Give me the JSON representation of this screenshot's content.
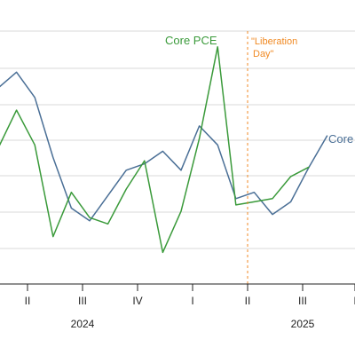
{
  "chart_data": {
    "type": "line",
    "x": [
      "2024-01",
      "2024-02",
      "2024-03",
      "2024-04",
      "2024-05",
      "2024-06",
      "2024-07",
      "2024-08",
      "2024-09",
      "2024-10",
      "2024-11",
      "2024-12",
      "2025-01",
      "2025-02",
      "2025-03",
      "2025-04",
      "2025-05",
      "2025-06",
      "2025-07",
      "2025-08"
    ],
    "series": [
      {
        "name": "Core",
        "color": "#4a6f96",
        "values": [
          0.5,
          0.55,
          0.47,
          0.28,
          0.12,
          0.08,
          0.16,
          0.24,
          0.26,
          0.3,
          0.24,
          0.38,
          0.32,
          0.15,
          0.17,
          0.1,
          0.14,
          0.25,
          0.35,
          null
        ]
      },
      {
        "name": "Core PCE",
        "color": "#3a9a3a",
        "values": [
          0.31,
          0.43,
          0.32,
          0.03,
          0.17,
          0.09,
          0.07,
          0.18,
          0.27,
          -0.02,
          0.11,
          0.34,
          0.63,
          0.13,
          0.14,
          0.15,
          0.22,
          0.25,
          null,
          null
        ]
      }
    ],
    "series_labels": {
      "core": "Core",
      "core_pce": "Core PCE"
    },
    "annotation": {
      "text_line1": "\"Liberation",
      "text_line2": "Day\"",
      "color": "#f08a24"
    },
    "x_ticks": [
      "II",
      "III",
      "IV",
      "I",
      "II",
      "III",
      "I"
    ],
    "year_labels": [
      "2024",
      "2025"
    ],
    "ylim": [
      -0.12,
      0.68
    ],
    "grid": "horizontal"
  }
}
